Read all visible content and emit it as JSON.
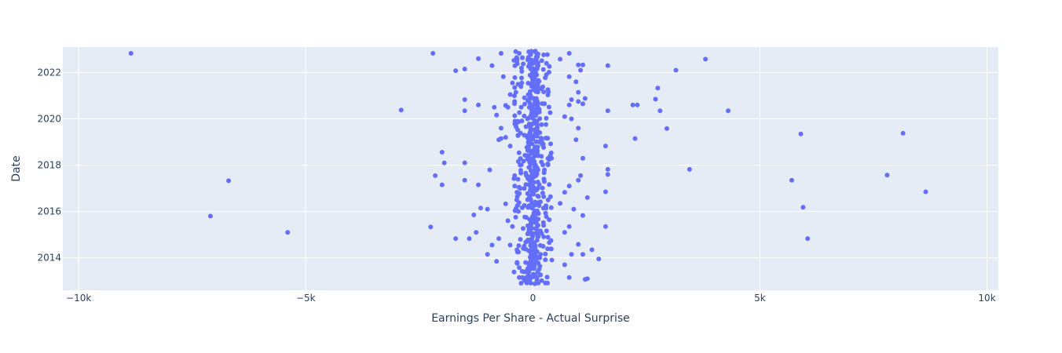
{
  "chart_data": {
    "type": "scatter",
    "xlabel": "Earnings Per Share - Actual Surprise",
    "ylabel": "Date",
    "xlim": [
      -10350,
      10250
    ],
    "ylim": [
      2012.6,
      2023.1
    ],
    "grid": true,
    "x_ticks": [
      -10000,
      -5000,
      0,
      5000,
      10000
    ],
    "x_tick_labels": [
      "−10k",
      "−5k",
      "0",
      "5k",
      "10k"
    ],
    "y_ticks": [
      2014,
      2016,
      2018,
      2020,
      2022
    ],
    "y_tick_labels": [
      "2014",
      "2016",
      "2018",
      "2020",
      "2022"
    ],
    "colors": {
      "marker": "#636efa",
      "plot_bg": "#e5ecf6",
      "grid": "#ffffff",
      "text": "#2a3f5f"
    },
    "series": [
      {
        "points": [
          [
            -8850,
            2022.83
          ],
          [
            -2200,
            2022.83
          ],
          [
            -1200,
            2022.6
          ],
          [
            -1500,
            2022.15
          ],
          [
            -1700,
            2022.08
          ],
          [
            -700,
            2022.83
          ],
          [
            -900,
            2022.3
          ],
          [
            -650,
            2021.82
          ],
          [
            -1500,
            2020.83
          ],
          [
            -1200,
            2020.6
          ],
          [
            -1500,
            2020.35
          ],
          [
            -2900,
            2020.38
          ],
          [
            -850,
            2020.5
          ],
          [
            -800,
            2020.16
          ],
          [
            -700,
            2019.6
          ],
          [
            -750,
            2019.1
          ],
          [
            -2000,
            2018.56
          ],
          [
            -1950,
            2018.1
          ],
          [
            -1500,
            2018.1
          ],
          [
            -950,
            2017.8
          ],
          [
            -2150,
            2017.55
          ],
          [
            -2000,
            2017.15
          ],
          [
            -1500,
            2017.35
          ],
          [
            -1200,
            2017.15
          ],
          [
            -6700,
            2017.33
          ],
          [
            -7100,
            2015.8
          ],
          [
            -5400,
            2015.1
          ],
          [
            -2250,
            2015.33
          ],
          [
            -1250,
            2015.1
          ],
          [
            -1700,
            2014.83
          ],
          [
            -1400,
            2014.83
          ],
          [
            -1000,
            2016.1
          ],
          [
            -1300,
            2015.85
          ],
          [
            -1150,
            2016.15
          ],
          [
            -1000,
            2014.15
          ],
          [
            -900,
            2014.55
          ],
          [
            -800,
            2013.85
          ],
          [
            -750,
            2014.83
          ],
          [
            -600,
            2016.33
          ],
          [
            -550,
            2015.6
          ],
          [
            -500,
            2014.55
          ],
          [
            -450,
            2015.35
          ],
          [
            -350,
            2016.83
          ],
          [
            -300,
            2013.15
          ],
          [
            -300,
            2013.58
          ],
          [
            -350,
            2014.35
          ],
          [
            -400,
            2017.1
          ],
          [
            -400,
            2017.55
          ],
          [
            -500,
            2018.83
          ],
          [
            -600,
            2019.2
          ],
          [
            -700,
            2019.15
          ],
          [
            -550,
            2020.5
          ],
          [
            -500,
            2021.05
          ],
          [
            -400,
            2021.35
          ],
          [
            -450,
            2021.55
          ],
          [
            -350,
            2022.58
          ],
          [
            -300,
            2022.83
          ],
          [
            -250,
            2022.2
          ],
          [
            -600,
            2020.58
          ],
          [
            -350,
            2019.85
          ],
          [
            800,
            2022.83
          ],
          [
            600,
            2022.58
          ],
          [
            1000,
            2022.33
          ],
          [
            1100,
            2022.33
          ],
          [
            1050,
            2022.1
          ],
          [
            800,
            2021.82
          ],
          [
            950,
            2021.6
          ],
          [
            1000,
            2021.15
          ],
          [
            850,
            2020.83
          ],
          [
            1150,
            2020.88
          ],
          [
            1100,
            2020.65
          ],
          [
            1000,
            2020.75
          ],
          [
            800,
            2020.6
          ],
          [
            700,
            2020.1
          ],
          [
            850,
            2020.0
          ],
          [
            1000,
            2019.6
          ],
          [
            950,
            2019.1
          ],
          [
            1100,
            2018.3
          ],
          [
            1050,
            2017.55
          ],
          [
            1000,
            2017.35
          ],
          [
            800,
            2017.1
          ],
          [
            700,
            2016.83
          ],
          [
            1200,
            2016.6
          ],
          [
            900,
            2016.1
          ],
          [
            600,
            2016.35
          ],
          [
            1100,
            2015.83
          ],
          [
            800,
            2015.35
          ],
          [
            700,
            2015.1
          ],
          [
            1000,
            2014.58
          ],
          [
            1100,
            2014.15
          ],
          [
            850,
            2014.15
          ],
          [
            700,
            2013.7
          ],
          [
            800,
            2013.15
          ],
          [
            1200,
            2013.1
          ],
          [
            1150,
            2013.07
          ],
          [
            1300,
            2014.35
          ],
          [
            1450,
            2013.95
          ],
          [
            1600,
            2015.35
          ],
          [
            1600,
            2016.85
          ],
          [
            1650,
            2017.6
          ],
          [
            1650,
            2017.82
          ],
          [
            1600,
            2018.83
          ],
          [
            1650,
            2020.35
          ],
          [
            1650,
            2022.3
          ],
          [
            2200,
            2020.6
          ],
          [
            2300,
            2020.6
          ],
          [
            2250,
            2019.15
          ],
          [
            2700,
            2020.85
          ],
          [
            2750,
            2021.33
          ],
          [
            2800,
            2020.35
          ],
          [
            2950,
            2019.58
          ],
          [
            3150,
            2022.1
          ],
          [
            3800,
            2022.58
          ],
          [
            3450,
            2017.82
          ],
          [
            4300,
            2020.35
          ],
          [
            5700,
            2017.35
          ],
          [
            5900,
            2019.35
          ],
          [
            5950,
            2016.18
          ],
          [
            6050,
            2014.83
          ],
          [
            7800,
            2017.57
          ],
          [
            8150,
            2019.38
          ],
          [
            8650,
            2016.85
          ]
        ]
      }
    ]
  }
}
